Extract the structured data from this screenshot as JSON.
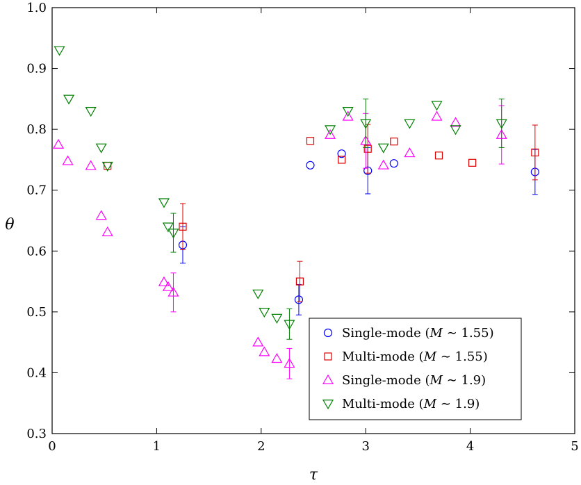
{
  "chart_data": {
    "type": "scatter",
    "title": "",
    "xlabel": "τ",
    "ylabel": "θ",
    "xlim": [
      0,
      5
    ],
    "ylim": [
      0.3,
      1.0
    ],
    "xticks": [
      "0",
      "1",
      "2",
      "3",
      "4",
      "5"
    ],
    "yticks": [
      "0.3",
      "0.4",
      "0.5",
      "0.6",
      "0.7",
      "0.8",
      "0.9",
      "1.0"
    ],
    "grid": false,
    "legend_position": "bottom-right",
    "series": [
      {
        "name": "Single-mode (M ∼ 1.55)",
        "legend_prefix": "Single-mode (",
        "legend_var": "M",
        "legend_suffix": " ∼ 1.55)",
        "marker": "circle",
        "color": "#0000ff",
        "points": [
          {
            "x": 1.25,
            "y": 0.61,
            "err": 0.03
          },
          {
            "x": 2.36,
            "y": 0.52,
            "err": 0.025
          },
          {
            "x": 2.47,
            "y": 0.741
          },
          {
            "x": 2.77,
            "y": 0.76
          },
          {
            "x": 3.02,
            "y": 0.732,
            "err": 0.038
          },
          {
            "x": 3.27,
            "y": 0.744
          },
          {
            "x": 4.62,
            "y": 0.73,
            "err": 0.037
          }
        ]
      },
      {
        "name": "Multi-mode (M ∼ 1.55)",
        "legend_prefix": "Multi-mode (",
        "legend_var": "M",
        "legend_suffix": " ∼ 1.55)",
        "marker": "square",
        "color": "#dd0000",
        "points": [
          {
            "x": 0.53,
            "y": 0.74
          },
          {
            "x": 1.25,
            "y": 0.64,
            "err": 0.038
          },
          {
            "x": 2.37,
            "y": 0.55,
            "err": 0.033
          },
          {
            "x": 2.47,
            "y": 0.781
          },
          {
            "x": 2.77,
            "y": 0.75
          },
          {
            "x": 3.02,
            "y": 0.768,
            "err": 0.04
          },
          {
            "x": 3.27,
            "y": 0.78
          },
          {
            "x": 3.7,
            "y": 0.757
          },
          {
            "x": 4.02,
            "y": 0.745
          },
          {
            "x": 4.62,
            "y": 0.762,
            "err": 0.045
          }
        ]
      },
      {
        "name": "Single-mode (M ∼ 1.9)",
        "legend_prefix": "Single-mode (",
        "legend_var": "M",
        "legend_suffix": " ∼ 1.9)",
        "marker": "triangle-up",
        "color": "#ff00ff",
        "points": [
          {
            "x": 0.06,
            "y": 0.775
          },
          {
            "x": 0.15,
            "y": 0.748
          },
          {
            "x": 0.37,
            "y": 0.74
          },
          {
            "x": 0.47,
            "y": 0.658
          },
          {
            "x": 0.53,
            "y": 0.631
          },
          {
            "x": 1.07,
            "y": 0.549
          },
          {
            "x": 1.11,
            "y": 0.541
          },
          {
            "x": 1.16,
            "y": 0.532,
            "err": 0.032
          },
          {
            "x": 1.97,
            "y": 0.45
          },
          {
            "x": 2.03,
            "y": 0.434
          },
          {
            "x": 2.15,
            "y": 0.423
          },
          {
            "x": 2.27,
            "y": 0.415,
            "err": 0.025
          },
          {
            "x": 2.66,
            "y": 0.791
          },
          {
            "x": 2.83,
            "y": 0.821
          },
          {
            "x": 3.0,
            "y": 0.781,
            "err": 0.045
          },
          {
            "x": 3.17,
            "y": 0.741
          },
          {
            "x": 3.42,
            "y": 0.761
          },
          {
            "x": 3.68,
            "y": 0.821
          },
          {
            "x": 3.86,
            "y": 0.811
          },
          {
            "x": 4.3,
            "y": 0.791,
            "err": 0.048
          }
        ]
      },
      {
        "name": "Multi-mode (M ∼ 1.9)",
        "legend_prefix": "Multi-mode (",
        "legend_var": "M",
        "legend_suffix": " ∼ 1.9)",
        "marker": "triangle-down",
        "color": "#008000",
        "points": [
          {
            "x": 0.07,
            "y": 0.93
          },
          {
            "x": 0.16,
            "y": 0.85
          },
          {
            "x": 0.37,
            "y": 0.83
          },
          {
            "x": 0.47,
            "y": 0.77
          },
          {
            "x": 0.53,
            "y": 0.74
          },
          {
            "x": 1.07,
            "y": 0.68
          },
          {
            "x": 1.11,
            "y": 0.64
          },
          {
            "x": 1.16,
            "y": 0.63,
            "err": 0.032
          },
          {
            "x": 1.97,
            "y": 0.53
          },
          {
            "x": 2.03,
            "y": 0.5
          },
          {
            "x": 2.15,
            "y": 0.49
          },
          {
            "x": 2.27,
            "y": 0.48,
            "err": 0.025
          },
          {
            "x": 2.66,
            "y": 0.8
          },
          {
            "x": 2.83,
            "y": 0.83
          },
          {
            "x": 3.0,
            "y": 0.81,
            "err": 0.04
          },
          {
            "x": 3.17,
            "y": 0.77
          },
          {
            "x": 3.42,
            "y": 0.81
          },
          {
            "x": 3.68,
            "y": 0.84
          },
          {
            "x": 3.86,
            "y": 0.8
          },
          {
            "x": 4.3,
            "y": 0.81,
            "err": 0.04
          }
        ]
      }
    ]
  }
}
